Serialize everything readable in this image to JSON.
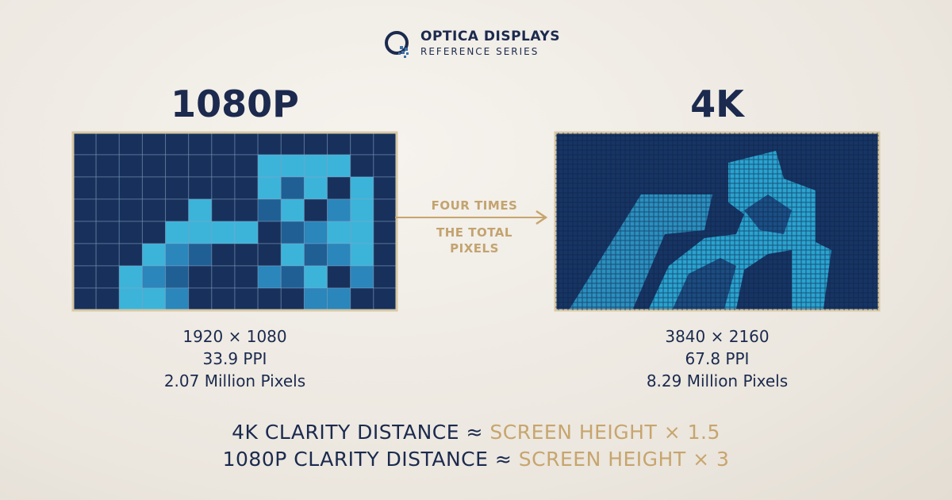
{
  "brand": {
    "name": "OPTICA DISPLAYS",
    "tagline": "REFERENCE SERIES"
  },
  "left": {
    "title": "1080P",
    "specs": [
      "1920 × 1080",
      "33.9 PPI",
      "2.07 Million Pixels"
    ]
  },
  "right": {
    "title": "4K",
    "specs": [
      "3840 × 2160",
      "67.8 PPI",
      "8.29 Million Pixels"
    ]
  },
  "arrow": {
    "lines": [
      "FOUR TIMES",
      "THE TOTAL",
      "PIXELS"
    ]
  },
  "footer": {
    "lines": [
      {
        "label": "4K CLARITY DISTANCE ≈",
        "value": "SCREEN HEIGHT × 1.5"
      },
      {
        "label": "1080P CLARITY DISTANCE ≈",
        "value": "SCREEN HEIGHT × 3"
      }
    ]
  }
}
